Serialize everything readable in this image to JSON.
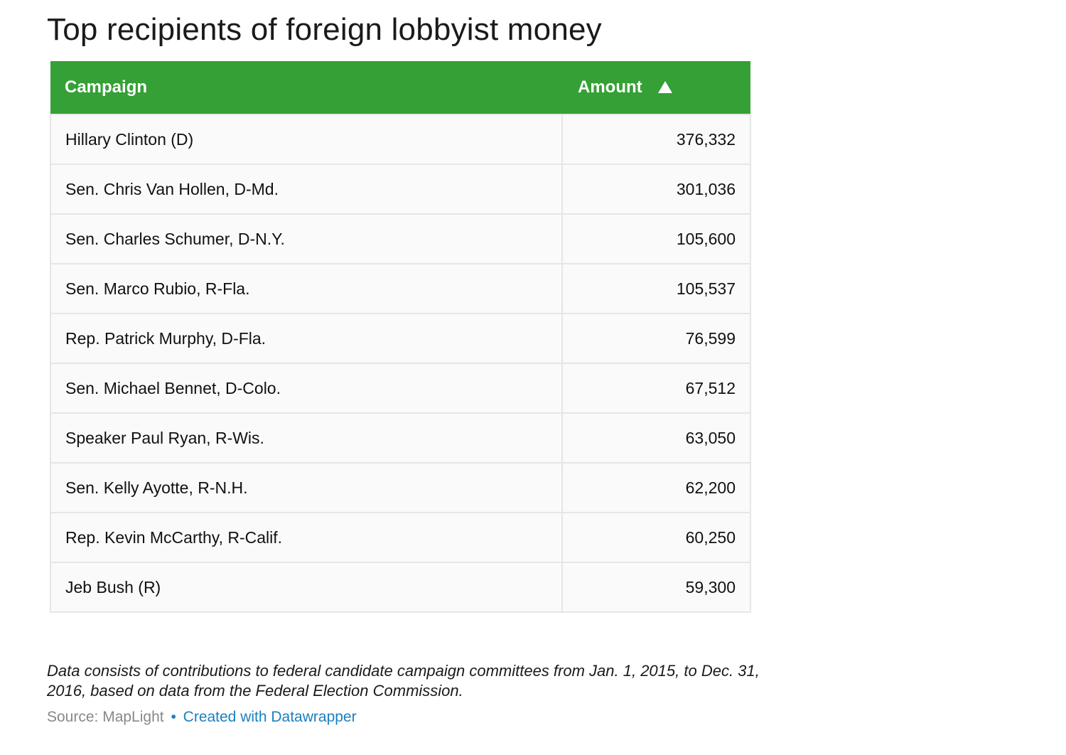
{
  "title": "Top recipients of foreign lobbyist money",
  "header": {
    "campaign_label": "Campaign",
    "amount_label": "Amount",
    "sort_icon": "triangle-up-icon"
  },
  "colors": {
    "header_bg": "#35a035",
    "link": "#1b7fbf",
    "row_bg": "#fafafa",
    "border": "#e6e6e6"
  },
  "chart_data": {
    "type": "table",
    "title": "Top recipients of foreign lobbyist money",
    "columns": [
      "Campaign",
      "Amount"
    ],
    "sort": {
      "column": "Amount",
      "indicator": "up"
    },
    "rows": [
      {
        "campaign": "Hillary Clinton (D)",
        "amount": "376,332"
      },
      {
        "campaign": "Sen. Chris Van Hollen, D-Md.",
        "amount": "301,036"
      },
      {
        "campaign": "Sen. Charles Schumer, D-N.Y.",
        "amount": "105,600"
      },
      {
        "campaign": "Sen. Marco Rubio, R-Fla.",
        "amount": "105,537"
      },
      {
        "campaign": "Rep. Patrick Murphy, D-Fla.",
        "amount": "76,599"
      },
      {
        "campaign": "Sen. Michael Bennet, D-Colo.",
        "amount": "67,512"
      },
      {
        "campaign": "Speaker Paul Ryan, R-Wis.",
        "amount": "63,050"
      },
      {
        "campaign": "Sen. Kelly Ayotte, R-N.H.",
        "amount": "62,200"
      },
      {
        "campaign": "Rep. Kevin McCarthy, R-Calif.",
        "amount": "60,250"
      },
      {
        "campaign": "Jeb Bush (R)",
        "amount": "59,300"
      }
    ]
  },
  "notes": "Data consists of contributions to federal candidate campaign committees from Jan. 1, 2015, to Dec. 31, 2016, based on data from the Federal Election Commission.",
  "footer": {
    "source": "Source: MapLight",
    "separator": "•",
    "credit": "Created with Datawrapper"
  }
}
